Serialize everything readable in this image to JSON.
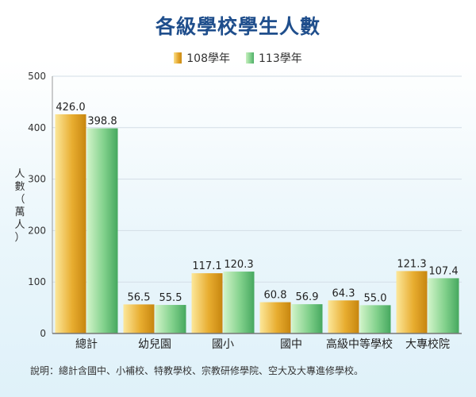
{
  "chart_data": {
    "type": "bar",
    "title": "各級學校學生人數",
    "ylabel": "人數（萬人）",
    "ylim": [
      0,
      500
    ],
    "yticks": [
      0,
      100,
      200,
      300,
      400,
      500
    ],
    "grid": true,
    "legend_position": "top-center",
    "categories": [
      "總計",
      "幼兒園",
      "國小",
      "國中",
      "高級中等學校",
      "大專校院"
    ],
    "series": [
      {
        "name": "108學年",
        "values": [
          426.0,
          56.5,
          117.1,
          60.8,
          64.3,
          121.3
        ],
        "labels": [
          "426.0",
          "56.5",
          "117.1",
          "60.8",
          "64.3",
          "121.3"
        ],
        "color": "#e3a328"
      },
      {
        "name": "113學年",
        "values": [
          398.8,
          55.5,
          120.3,
          56.9,
          55.0,
          107.4
        ],
        "labels": [
          "398.8",
          "55.5",
          "120.3",
          "56.9",
          "55.0",
          "107.4"
        ],
        "color": "#6cc47e"
      }
    ]
  },
  "note": "說明：總計含國中、小補校、特教學校、宗教研修學院、空大及大專進修學校。"
}
